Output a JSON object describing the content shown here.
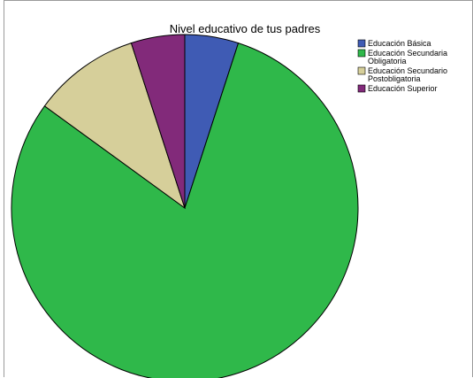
{
  "chart_data": {
    "type": "pie",
    "title": "Nivel educativo de tus padres",
    "categories": [
      "Educación Básica",
      "Educación Secundaria Obligatoria",
      "Educación Secundario Postobligatoria",
      "Educación Superior"
    ],
    "legend_lines": [
      [
        "Educación Básica"
      ],
      [
        "Educación Secundaria",
        "Obligatoria"
      ],
      [
        "Educación Secundario",
        "Postobligatoria"
      ],
      [
        "Educación Superior"
      ]
    ],
    "values": [
      5,
      80,
      10,
      5
    ],
    "unit": "percent (estimated)",
    "colors": [
      "#3f5bb4",
      "#2fb84a",
      "#d6cf9a",
      "#822a7a"
    ],
    "start": "top (12 o'clock)",
    "direction": "clockwise",
    "legend_placement": "top-right"
  }
}
